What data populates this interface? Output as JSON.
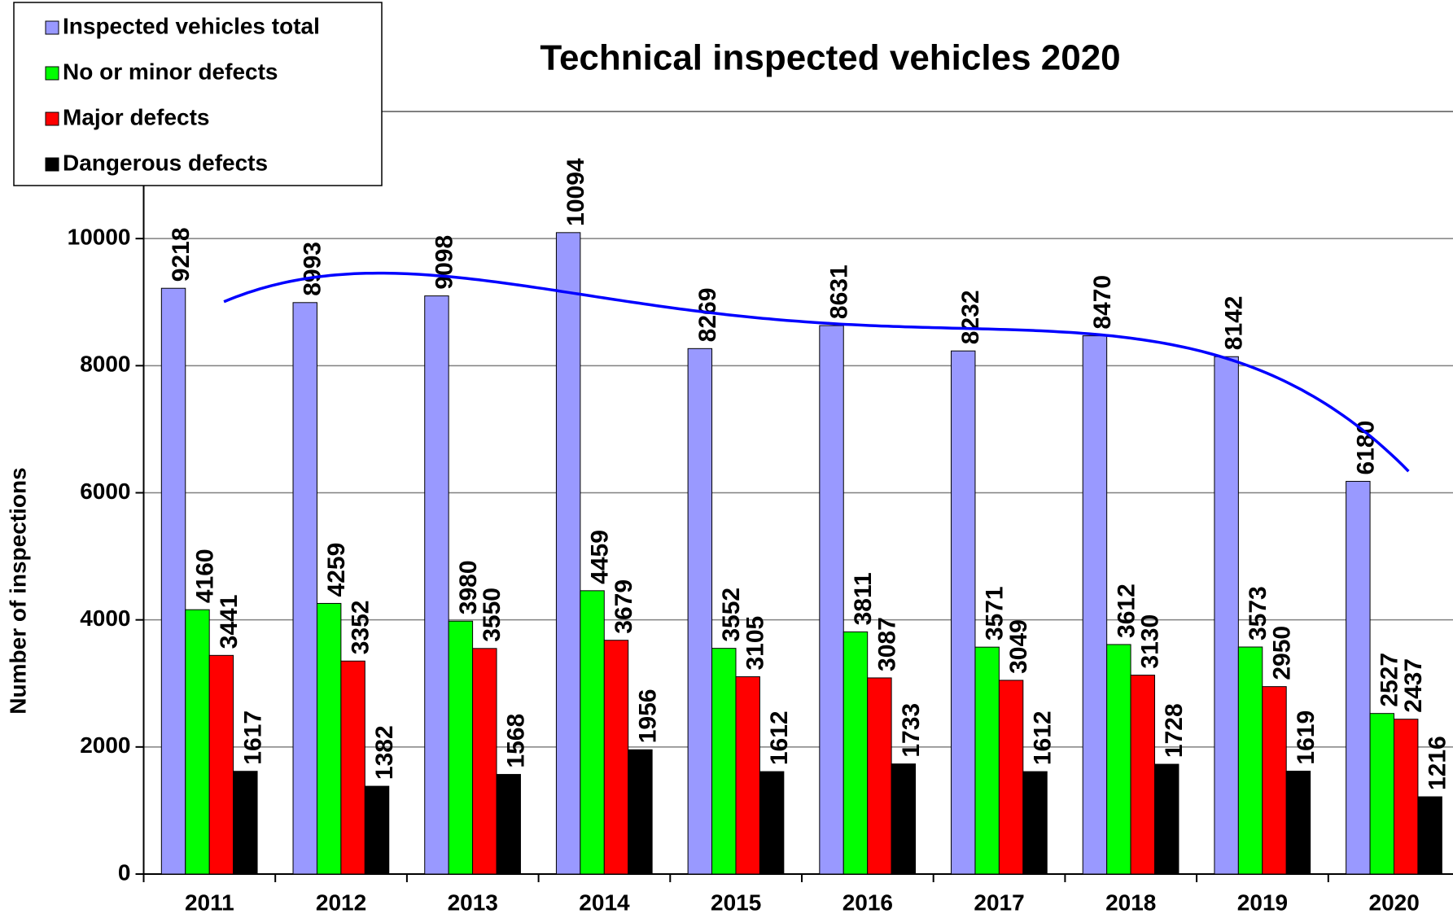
{
  "chart_data": {
    "type": "bar",
    "title": "Technical inspected vehicles 2020",
    "y_label": "Number of inspections",
    "categories": [
      "2011",
      "2012",
      "2013",
      "2014",
      "2015",
      "2016",
      "2017",
      "2018",
      "2019",
      "2020"
    ],
    "series": [
      {
        "name": "Inspected vehicles total",
        "color": "#9999ff",
        "values": [
          9218,
          8993,
          9098,
          10094,
          8269,
          8631,
          8232,
          8470,
          8142,
          6180
        ]
      },
      {
        "name": "No or minor defects",
        "color": "#00ff00",
        "values": [
          4160,
          4259,
          3980,
          4459,
          3552,
          3811,
          3571,
          3612,
          3573,
          2527
        ]
      },
      {
        "name": "Major defects",
        "color": "#ff0000",
        "values": [
          3441,
          3352,
          3550,
          3679,
          3105,
          3087,
          3049,
          3130,
          2950,
          2437
        ]
      },
      {
        "name": "Dangerous defects",
        "color": "#000000",
        "values": [
          1617,
          1382,
          1568,
          1956,
          1612,
          1733,
          1612,
          1728,
          1619,
          1216
        ]
      }
    ],
    "ylim": [
      0,
      12000
    ],
    "yticks": [
      0,
      2000,
      4000,
      6000,
      8000,
      10000
    ],
    "grid": true,
    "legend": "top-left",
    "trendline": {
      "series": 0,
      "type": "polynomial",
      "order": 4,
      "color": "#0000ff"
    }
  }
}
